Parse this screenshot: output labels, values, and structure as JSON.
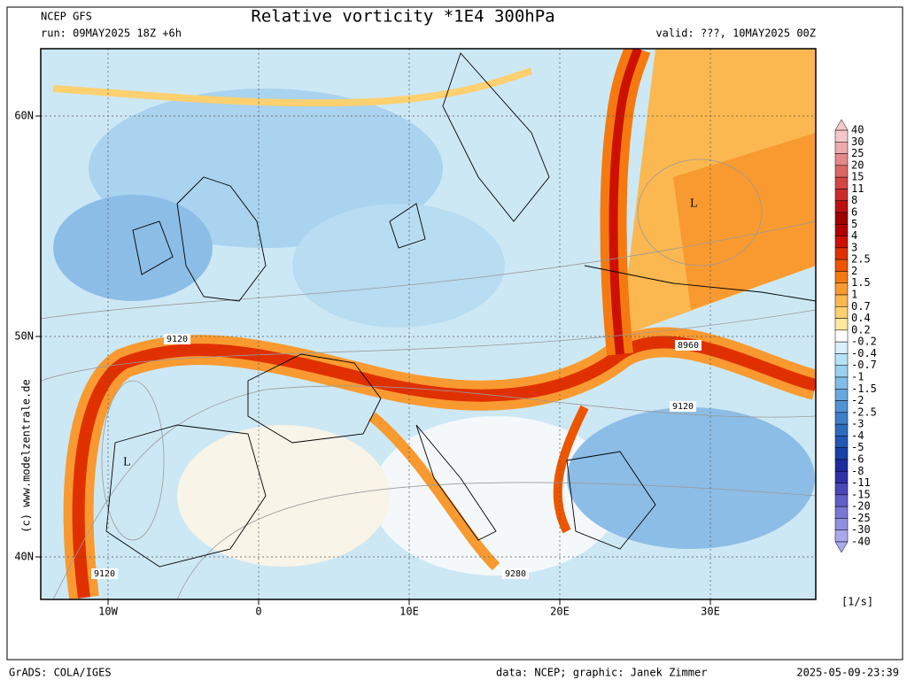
{
  "header": {
    "model": "NCEP GFS",
    "run": "run: 09MAY2025 18Z +6h",
    "title": "Relative vorticity *1E4 300hPa",
    "valid": "valid: ???, 10MAY2025 00Z"
  },
  "map": {
    "lat_labels": [
      "60N",
      "50N",
      "40N"
    ],
    "lon_labels": [
      "10W",
      "0",
      "10E",
      "20E",
      "30E"
    ],
    "contour_labels": [
      "9120",
      "8960",
      "9120",
      "9120",
      "9280"
    ],
    "lows": [
      "L",
      "L"
    ],
    "credit": "(c) www.modelzentrale.de"
  },
  "colorbar": {
    "labels": [
      "40",
      "30",
      "25",
      "20",
      "15",
      "11",
      "8",
      "6",
      "5",
      "4",
      "3",
      "2.5",
      "2",
      "1.5",
      "1",
      "0.7",
      "0.4",
      "0.2",
      "-0.2",
      "-0.4",
      "-0.7",
      "-1",
      "-1.5",
      "-2",
      "-2.5",
      "-3",
      "-4",
      "-5",
      "-6",
      "-8",
      "-11",
      "-15",
      "-20",
      "-25",
      "-30",
      "-40"
    ],
    "unit": "[1/s]"
  },
  "footer": {
    "software": "GrADS: COLA/IGES",
    "credits": "data: NCEP; graphic: Janek Zimmer",
    "timestamp": "2025-05-09-23:39"
  }
}
